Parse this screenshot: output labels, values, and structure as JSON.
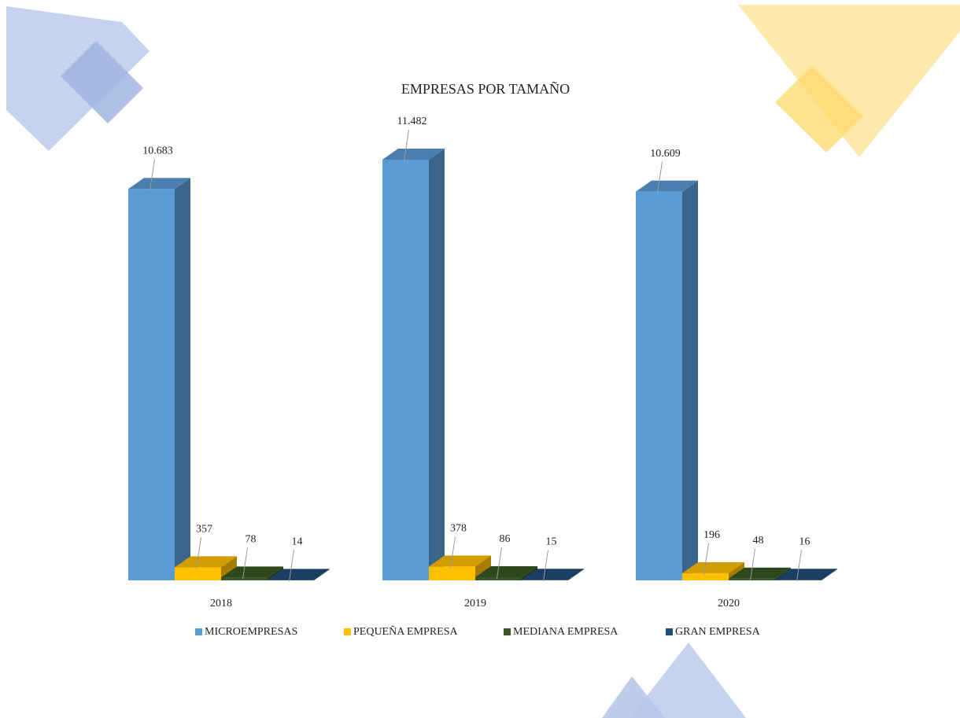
{
  "chart_data": {
    "type": "bar3d",
    "title": "EMPRESAS POR TAMAÑO",
    "categories": [
      "2018",
      "2019",
      "2020"
    ],
    "series": [
      {
        "name": "MICROEMPRESAS",
        "color": "#5b9bd5",
        "values": [
          10683,
          11482,
          10609
        ],
        "value_labels": [
          "10.683",
          "11.482",
          "10.609"
        ]
      },
      {
        "name": "PEQUEÑA EMPRESA",
        "color": "#ffc000",
        "values": [
          357,
          378,
          196
        ]
      },
      {
        "name": "MEDIANA EMPRESA",
        "color": "#385723",
        "values": [
          78,
          86,
          48
        ]
      },
      {
        "name": "GRAN EMPRESA",
        "color": "#1f4e79",
        "values": [
          14,
          15,
          16
        ]
      }
    ],
    "legend": "bottom"
  }
}
